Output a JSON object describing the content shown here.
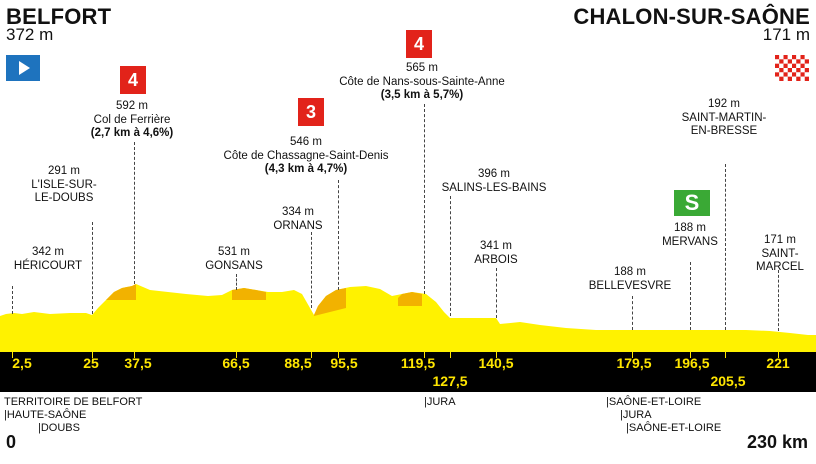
{
  "start": {
    "name": "BELFORT",
    "altitude": "372 m"
  },
  "finish": {
    "name": "CHALON-SUR-SAÔNE",
    "altitude": "171 m"
  },
  "points": [
    {
      "id": "hericourt",
      "alt": "342 m",
      "name": "HÉRICOURT"
    },
    {
      "id": "isle",
      "alt": "291 m",
      "name1": "L'ISLE-SUR-",
      "name2": "LE-DOUBS"
    },
    {
      "id": "ferriere",
      "alt": "592 m",
      "name": "Col de Ferrière",
      "detail": "(2,7 km à 4,6%)",
      "category": "4"
    },
    {
      "id": "gonsans",
      "alt": "531 m",
      "name": "GONSANS"
    },
    {
      "id": "ornans",
      "alt": "334 m",
      "name": "ORNANS"
    },
    {
      "id": "chassagne",
      "alt": "546 m",
      "name": "Côte de Chassagne-Saint-Denis",
      "detail": "(4,3 km à 4,7%)",
      "category": "3"
    },
    {
      "id": "nans",
      "alt": "565 m",
      "name": "Côte de Nans-sous-Sainte-Anne",
      "detail": "(3,5 km à 5,7%)",
      "category": "4"
    },
    {
      "id": "salins",
      "alt": "396 m",
      "name": "SALINS-LES-BAINS"
    },
    {
      "id": "arbois",
      "alt": "341 m",
      "name": "ARBOIS"
    },
    {
      "id": "bellevesvre",
      "alt": "188 m",
      "name": "BELLEVESVRE"
    },
    {
      "id": "mervans",
      "alt": "188 m",
      "name": "MERVANS",
      "sprint": "S"
    },
    {
      "id": "stmartin",
      "alt": "192 m",
      "name1": "SAINT-MARTIN-",
      "name2": "EN-BRESSE"
    },
    {
      "id": "stmarcel",
      "alt": "171 m",
      "name1": "SAINT-",
      "name2": "MARCEL"
    }
  ],
  "km_markers": [
    "2,5",
    "25",
    "37,5",
    "66,5",
    "88,5",
    "95,5",
    "119,5",
    "127,5",
    "140,5",
    "179,5",
    "196,5",
    "205,5",
    "221"
  ],
  "departments": [
    "TERRITOIRE DE BELFORT",
    "|HAUTE-SAÔNE",
    "|DOUBS",
    "|JURA",
    "|SAÔNE-ET-LOIRE",
    "|JURA",
    "|SAÔNE-ET-LOIRE"
  ],
  "distance_start": "0",
  "distance_end": "230 km",
  "colors": {
    "profile": "#fff200",
    "climb": "#f2b200",
    "category": "#e2231a",
    "sprint": "#3aa935",
    "band": "#000000",
    "km_text": "#ffe600",
    "start_flag": "#1e73be"
  },
  "icons": {
    "start": "start-flag-icon",
    "finish": "checkered-flag-icon",
    "sprint": "sprint-icon"
  }
}
